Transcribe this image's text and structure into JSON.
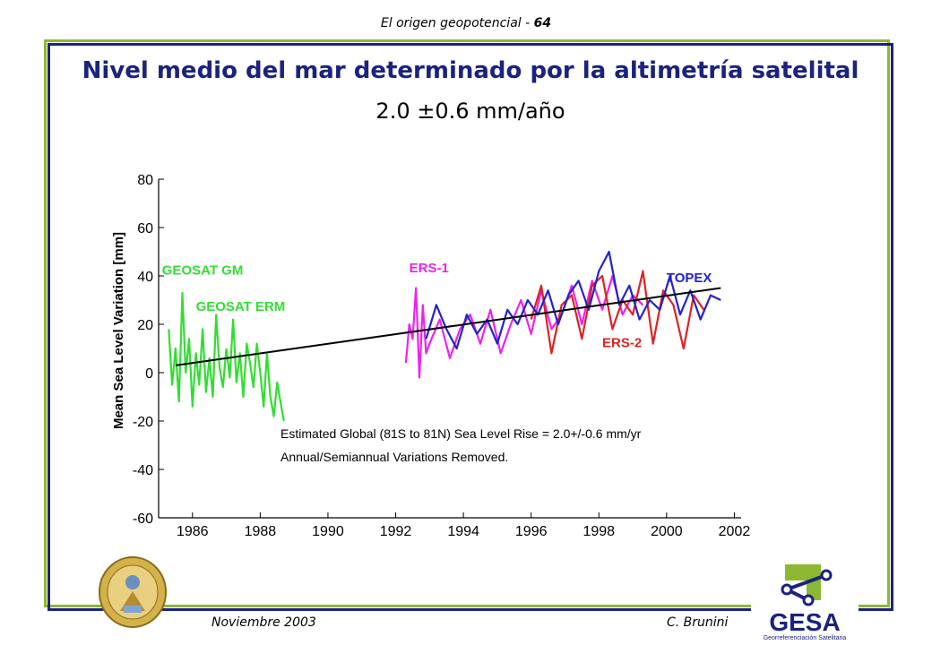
{
  "header": {
    "text": "El origen geopotencial - ",
    "page": "64"
  },
  "title": "Nivel medio del mar determinado por la altimetría satelital",
  "subtitle": "2.0 ±0.6 mm/año",
  "footer": {
    "date": "Noviembre 2003",
    "author": "C. Brunini"
  },
  "logo": {
    "text": "GESA",
    "tagline": "Georreferenciación Satelitaria",
    "colors": {
      "green": "#8cb832",
      "navy": "#1a237e"
    }
  },
  "chart_data": {
    "type": "line",
    "xlim": [
      1985,
      2002.2
    ],
    "ylim": [
      -60,
      80
    ],
    "xticks": [
      1986,
      1988,
      1990,
      1992,
      1994,
      1996,
      1998,
      2000,
      2002
    ],
    "yticks": [
      -60,
      -40,
      -20,
      0,
      20,
      40,
      60,
      80
    ],
    "ylabel": "Mean Sea Level Variation [mm]",
    "grid": false,
    "annotations": [
      "Estimated Global (81S to 81N) Sea Level Rise = 2.0+/-0.6 mm/yr",
      "Annual/Semiannual Variations Removed."
    ],
    "series": [
      {
        "name": "GEOSAT GM",
        "color": "#33dd33",
        "x": [
          1985.3,
          1985.4,
          1985.5,
          1985.6,
          1985.7,
          1985.8,
          1985.9,
          1986.0,
          1986.1,
          1986.2,
          1986.3,
          1986.4,
          1986.5,
          1986.6,
          1986.7,
          1986.8,
          1986.9,
          1987.0
        ],
        "y": [
          18,
          -5,
          10,
          -12,
          33,
          0,
          14,
          -14,
          8,
          -5,
          18,
          -8,
          6,
          -10,
          24,
          2,
          -6,
          10
        ]
      },
      {
        "name": "GEOSAT ERM",
        "color": "#33dd33",
        "x": [
          1987.0,
          1987.1,
          1987.2,
          1987.3,
          1987.4,
          1987.5,
          1987.6,
          1987.7,
          1987.8,
          1987.9,
          1988.0,
          1988.1,
          1988.2,
          1988.3,
          1988.4,
          1988.5,
          1988.6,
          1988.7
        ],
        "y": [
          10,
          -2,
          22,
          -4,
          8,
          -10,
          12,
          4,
          -6,
          12,
          0,
          -14,
          8,
          -10,
          -18,
          -4,
          -12,
          -20
        ]
      },
      {
        "name": "ERS-1",
        "color": "#ee22ee",
        "x": [
          1992.3,
          1992.4,
          1992.5,
          1992.6,
          1992.7,
          1992.8,
          1992.9,
          1993.0,
          1993.3,
          1993.6,
          1993.9,
          1994.2,
          1994.5,
          1994.8,
          1995.1,
          1995.4,
          1995.7,
          1996.0,
          1996.3,
          1996.6,
          1996.9,
          1997.2,
          1997.5,
          1997.8,
          1998.1,
          1998.4,
          1998.7,
          1999.0,
          1999.3
        ],
        "y": [
          4,
          20,
          14,
          35,
          -2,
          28,
          8,
          12,
          22,
          6,
          18,
          24,
          12,
          26,
          8,
          20,
          30,
          16,
          34,
          18,
          24,
          36,
          20,
          38,
          26,
          40,
          24,
          32,
          28
        ]
      },
      {
        "name": "ERS-2",
        "color": "#dd2222",
        "x": [
          1996.0,
          1996.3,
          1996.6,
          1996.9,
          1997.2,
          1997.5,
          1997.8,
          1998.1,
          1998.4,
          1998.7,
          1999.0,
          1999.3,
          1999.6,
          1999.9,
          2000.2,
          2000.5,
          2000.8,
          2001.1
        ],
        "y": [
          22,
          36,
          8,
          28,
          32,
          14,
          36,
          40,
          18,
          30,
          24,
          42,
          12,
          34,
          28,
          10,
          32,
          26
        ]
      },
      {
        "name": "TOPEX",
        "color": "#2222cc",
        "x": [
          1992.9,
          1993.2,
          1993.5,
          1993.8,
          1994.1,
          1994.4,
          1994.7,
          1995.0,
          1995.3,
          1995.6,
          1995.9,
          1996.2,
          1996.5,
          1996.8,
          1997.1,
          1997.4,
          1997.7,
          1998.0,
          1998.3,
          1998.6,
          1998.9,
          1999.2,
          1999.5,
          1999.8,
          2000.1,
          2000.4,
          2000.7,
          2001.0,
          2001.3,
          2001.6
        ],
        "y": [
          14,
          28,
          18,
          10,
          24,
          16,
          22,
          12,
          26,
          20,
          30,
          24,
          34,
          20,
          32,
          38,
          26,
          42,
          50,
          28,
          36,
          22,
          30,
          26,
          40,
          24,
          34,
          22,
          32,
          30
        ]
      },
      {
        "name": "Trend",
        "color": "#000000",
        "x": [
          1985.5,
          2001.6
        ],
        "y": [
          3,
          35
        ]
      }
    ]
  }
}
